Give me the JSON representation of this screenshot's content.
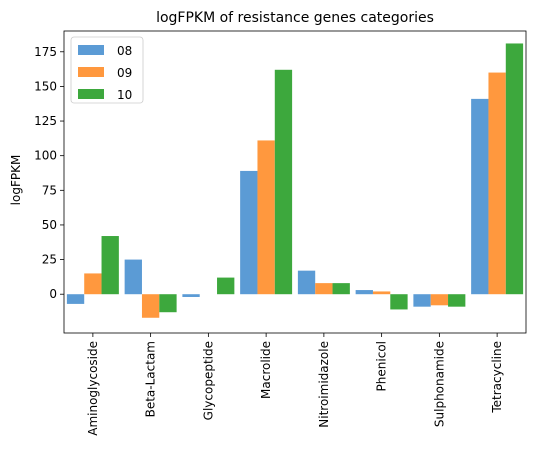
{
  "chart_data": {
    "type": "bar",
    "title": "logFPKM of resistance genes categories",
    "xlabel": "",
    "ylabel": "logFPKM",
    "categories": [
      "Aminoglycoside",
      "Beta-Lactam",
      "Glycopeptide",
      "Macrolide",
      "Nitroimidazole",
      "Phenicol",
      "Sulphonamide",
      "Tetracycline"
    ],
    "series": [
      {
        "name": "08",
        "color": "#5b9bd5",
        "values": [
          -7,
          25,
          -2,
          89,
          17,
          3,
          -9,
          141
        ]
      },
      {
        "name": "09",
        "color": "#ff983e",
        "values": [
          15,
          -17,
          0,
          111,
          8,
          2,
          -8,
          160
        ]
      },
      {
        "name": "10",
        "color": "#3da83d",
        "values": [
          42,
          -13,
          12,
          162,
          8,
          -11,
          -9,
          181
        ]
      }
    ],
    "ylim": [
      -28,
      190
    ],
    "yticks": [
      0,
      25,
      50,
      75,
      100,
      125,
      150,
      175
    ],
    "grid": false,
    "legend": "top-left"
  }
}
